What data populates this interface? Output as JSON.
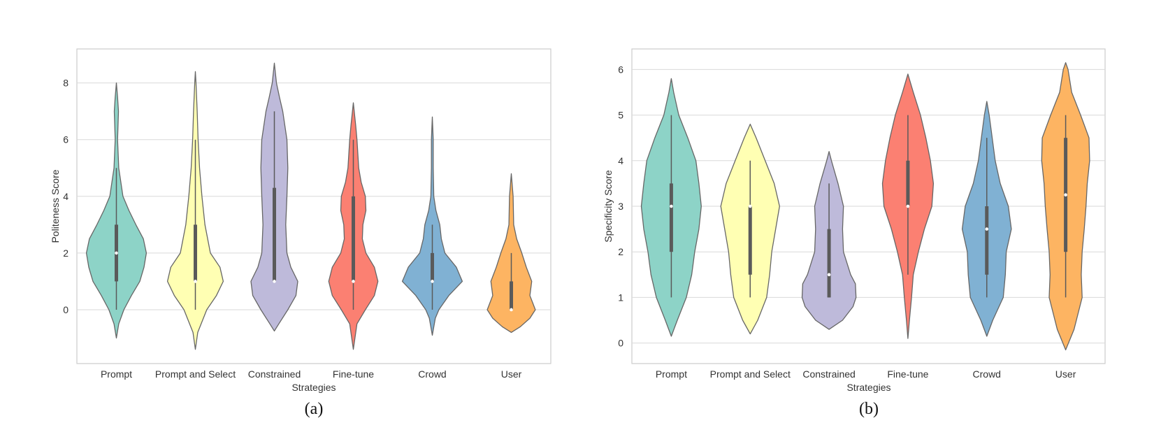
{
  "chart_data": [
    {
      "type": "violin",
      "panel_caption": "(a)",
      "xlabel": "Strategies",
      "ylabel": "Politeness Score",
      "ylim": [
        -1.9,
        9.2
      ],
      "yticks": [
        "0",
        "2",
        "4",
        "6",
        "8"
      ],
      "grid": "horizontal",
      "categories": [
        {
          "label": "Prompt",
          "color": "#8dd3c7",
          "min": -1.0,
          "max": 8.0,
          "q1": 1.0,
          "median": 2.0,
          "q3": 3.0,
          "whisker_low": 0.0,
          "whisker_high": 5.0,
          "density": [
            [
              -1.0,
              0.0
            ],
            [
              -0.5,
              0.08
            ],
            [
              0.0,
              0.25
            ],
            [
              0.5,
              0.5
            ],
            [
              1.0,
              0.78
            ],
            [
              1.5,
              0.92
            ],
            [
              2.0,
              1.0
            ],
            [
              2.5,
              0.9
            ],
            [
              3.0,
              0.65
            ],
            [
              3.5,
              0.42
            ],
            [
              4.0,
              0.22
            ],
            [
              5.0,
              0.08
            ],
            [
              6.0,
              0.04
            ],
            [
              7.0,
              0.07
            ],
            [
              7.5,
              0.04
            ],
            [
              8.0,
              0.0
            ]
          ]
        },
        {
          "label": "Prompt and Select",
          "color": "#ffffb3",
          "min": -1.4,
          "max": 8.4,
          "q1": 1.0,
          "median": 1.0,
          "q3": 3.0,
          "whisker_low": 0.0,
          "whisker_high": 6.0,
          "density": [
            [
              -1.4,
              0.0
            ],
            [
              -0.8,
              0.08
            ],
            [
              0.0,
              0.38
            ],
            [
              0.5,
              0.7
            ],
            [
              1.0,
              0.93
            ],
            [
              1.5,
              0.82
            ],
            [
              2.0,
              0.5
            ],
            [
              3.0,
              0.32
            ],
            [
              4.0,
              0.22
            ],
            [
              5.0,
              0.14
            ],
            [
              6.0,
              0.09
            ],
            [
              7.0,
              0.06
            ],
            [
              8.0,
              0.02
            ],
            [
              8.4,
              0.0
            ]
          ]
        },
        {
          "label": "Constrained",
          "color": "#bebada",
          "min": -0.75,
          "max": 8.7,
          "q1": 1.0,
          "median": 1.0,
          "q3": 4.3,
          "whisker_low": 1.0,
          "whisker_high": 7.0,
          "density": [
            [
              -0.75,
              0.0
            ],
            [
              -0.5,
              0.15
            ],
            [
              0.0,
              0.45
            ],
            [
              0.5,
              0.72
            ],
            [
              1.0,
              0.78
            ],
            [
              1.5,
              0.55
            ],
            [
              2.0,
              0.42
            ],
            [
              3.0,
              0.38
            ],
            [
              4.0,
              0.42
            ],
            [
              5.0,
              0.45
            ],
            [
              6.0,
              0.42
            ],
            [
              7.0,
              0.28
            ],
            [
              7.5,
              0.17
            ],
            [
              8.0,
              0.07
            ],
            [
              8.7,
              0.0
            ]
          ]
        },
        {
          "label": "Fine-tune",
          "color": "#fb8072",
          "min": -1.4,
          "max": 7.3,
          "q1": 1.0,
          "median": 1.0,
          "q3": 4.0,
          "whisker_low": 0.0,
          "whisker_high": 6.0,
          "density": [
            [
              -1.4,
              0.0
            ],
            [
              -0.5,
              0.12
            ],
            [
              0.0,
              0.4
            ],
            [
              0.5,
              0.7
            ],
            [
              1.0,
              0.82
            ],
            [
              1.5,
              0.7
            ],
            [
              2.0,
              0.42
            ],
            [
              2.5,
              0.3
            ],
            [
              3.0,
              0.32
            ],
            [
              3.5,
              0.42
            ],
            [
              4.0,
              0.4
            ],
            [
              4.5,
              0.26
            ],
            [
              5.0,
              0.18
            ],
            [
              6.0,
              0.12
            ],
            [
              6.5,
              0.08
            ],
            [
              7.3,
              0.0
            ]
          ]
        },
        {
          "label": "Crowd",
          "color": "#80b1d3",
          "min": -0.9,
          "max": 6.8,
          "q1": 1.0,
          "median": 1.0,
          "q3": 2.0,
          "whisker_low": 0.0,
          "whisker_high": 3.0,
          "density": [
            [
              -0.9,
              0.0
            ],
            [
              -0.3,
              0.1
            ],
            [
              0.0,
              0.22
            ],
            [
              0.5,
              0.55
            ],
            [
              1.0,
              1.0
            ],
            [
              1.5,
              0.8
            ],
            [
              2.0,
              0.42
            ],
            [
              2.5,
              0.3
            ],
            [
              3.0,
              0.25
            ],
            [
              3.5,
              0.12
            ],
            [
              4.0,
              0.05
            ],
            [
              5.0,
              0.03
            ],
            [
              6.0,
              0.03
            ],
            [
              6.8,
              0.0
            ]
          ]
        },
        {
          "label": "User",
          "color": "#fdb462",
          "min": -0.8,
          "max": 4.8,
          "q1": 0.0,
          "median": 0.0,
          "q3": 1.0,
          "whisker_low": 0.0,
          "whisker_high": 2.0,
          "density": [
            [
              -0.8,
              0.0
            ],
            [
              -0.6,
              0.3
            ],
            [
              -0.3,
              0.62
            ],
            [
              0.0,
              0.8
            ],
            [
              0.5,
              0.62
            ],
            [
              1.0,
              0.68
            ],
            [
              1.5,
              0.5
            ],
            [
              2.0,
              0.35
            ],
            [
              2.5,
              0.18
            ],
            [
              3.0,
              0.08
            ],
            [
              4.0,
              0.06
            ],
            [
              4.8,
              0.0
            ]
          ]
        }
      ]
    },
    {
      "type": "violin",
      "panel_caption": "(b)",
      "xlabel": "Strategies",
      "ylabel": "Specificity Score",
      "ylim": [
        -0.45,
        6.45
      ],
      "yticks": [
        "0",
        "1",
        "2",
        "3",
        "4",
        "5",
        "6"
      ],
      "grid": "horizontal",
      "categories": [
        {
          "label": "Prompt",
          "color": "#8dd3c7",
          "min": 0.15,
          "max": 5.8,
          "q1": 2.0,
          "median": 3.0,
          "q3": 3.5,
          "whisker_low": 1.0,
          "whisker_high": 5.0,
          "density": [
            [
              0.15,
              0.0
            ],
            [
              0.5,
              0.2
            ],
            [
              1.0,
              0.5
            ],
            [
              1.5,
              0.68
            ],
            [
              2.0,
              0.78
            ],
            [
              2.5,
              0.92
            ],
            [
              3.0,
              1.0
            ],
            [
              3.5,
              0.92
            ],
            [
              4.0,
              0.82
            ],
            [
              4.5,
              0.55
            ],
            [
              5.0,
              0.25
            ],
            [
              5.5,
              0.08
            ],
            [
              5.8,
              0.0
            ]
          ]
        },
        {
          "label": "Prompt and Select",
          "color": "#ffffb3",
          "min": 0.2,
          "max": 4.8,
          "q1": 1.5,
          "median": 3.0,
          "q3": 3.0,
          "whisker_low": 1.0,
          "whisker_high": 4.0,
          "density": [
            [
              0.2,
              0.0
            ],
            [
              0.5,
              0.25
            ],
            [
              1.0,
              0.55
            ],
            [
              1.5,
              0.65
            ],
            [
              2.0,
              0.72
            ],
            [
              2.5,
              0.85
            ],
            [
              3.0,
              0.98
            ],
            [
              3.5,
              0.8
            ],
            [
              4.0,
              0.5
            ],
            [
              4.5,
              0.2
            ],
            [
              4.8,
              0.0
            ]
          ]
        },
        {
          "label": "Constrained",
          "color": "#bebada",
          "min": 0.3,
          "max": 4.2,
          "q1": 1.0,
          "median": 1.5,
          "q3": 2.5,
          "whisker_low": 1.0,
          "whisker_high": 3.5,
          "density": [
            [
              0.3,
              0.0
            ],
            [
              0.5,
              0.45
            ],
            [
              0.8,
              0.8
            ],
            [
              1.0,
              0.9
            ],
            [
              1.3,
              0.88
            ],
            [
              1.5,
              0.72
            ],
            [
              2.0,
              0.48
            ],
            [
              2.5,
              0.45
            ],
            [
              3.0,
              0.48
            ],
            [
              3.5,
              0.3
            ],
            [
              4.0,
              0.08
            ],
            [
              4.2,
              0.0
            ]
          ]
        },
        {
          "label": "Fine-tune",
          "color": "#fb8072",
          "min": 0.1,
          "max": 5.9,
          "q1": 3.0,
          "median": 3.0,
          "q3": 4.0,
          "whisker_low": 1.5,
          "whisker_high": 5.0,
          "density": [
            [
              0.1,
              0.0
            ],
            [
              0.5,
              0.05
            ],
            [
              1.0,
              0.12
            ],
            [
              1.5,
              0.18
            ],
            [
              2.0,
              0.35
            ],
            [
              2.5,
              0.55
            ],
            [
              3.0,
              0.8
            ],
            [
              3.5,
              0.85
            ],
            [
              4.0,
              0.75
            ],
            [
              4.5,
              0.6
            ],
            [
              5.0,
              0.42
            ],
            [
              5.5,
              0.18
            ],
            [
              5.9,
              0.0
            ]
          ]
        },
        {
          "label": "Crowd",
          "color": "#80b1d3",
          "min": 0.15,
          "max": 5.3,
          "q1": 1.5,
          "median": 2.5,
          "q3": 3.0,
          "whisker_low": 1.0,
          "whisker_high": 4.5,
          "density": [
            [
              0.15,
              0.0
            ],
            [
              0.5,
              0.2
            ],
            [
              1.0,
              0.55
            ],
            [
              1.5,
              0.62
            ],
            [
              2.0,
              0.65
            ],
            [
              2.5,
              0.82
            ],
            [
              3.0,
              0.72
            ],
            [
              3.5,
              0.45
            ],
            [
              4.0,
              0.28
            ],
            [
              4.5,
              0.18
            ],
            [
              5.0,
              0.08
            ],
            [
              5.3,
              0.0
            ]
          ]
        },
        {
          "label": "User",
          "color": "#fdb462",
          "min": -0.15,
          "max": 6.15,
          "q1": 2.0,
          "median": 3.25,
          "q3": 4.5,
          "whisker_low": 1.0,
          "whisker_high": 5.0,
          "density": [
            [
              -0.15,
              0.0
            ],
            [
              0.3,
              0.28
            ],
            [
              1.0,
              0.55
            ],
            [
              1.5,
              0.52
            ],
            [
              2.0,
              0.55
            ],
            [
              2.5,
              0.62
            ],
            [
              3.0,
              0.68
            ],
            [
              3.5,
              0.72
            ],
            [
              4.0,
              0.8
            ],
            [
              4.5,
              0.78
            ],
            [
              5.0,
              0.5
            ],
            [
              5.5,
              0.2
            ],
            [
              6.0,
              0.08
            ],
            [
              6.15,
              0.0
            ]
          ]
        }
      ]
    }
  ]
}
